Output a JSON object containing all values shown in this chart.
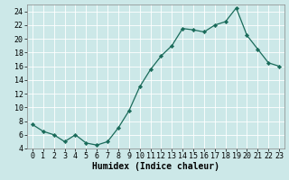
{
  "x": [
    0,
    1,
    2,
    3,
    4,
    5,
    6,
    7,
    8,
    9,
    10,
    11,
    12,
    13,
    14,
    15,
    16,
    17,
    18,
    19,
    20,
    21,
    22,
    23
  ],
  "y": [
    7.5,
    6.5,
    6.0,
    5.0,
    6.0,
    4.8,
    4.5,
    5.0,
    7.0,
    9.5,
    13.0,
    15.5,
    17.5,
    19.0,
    21.5,
    21.3,
    21.0,
    22.0,
    22.5,
    24.5,
    20.5,
    18.5,
    16.5,
    16.0
  ],
  "xlabel": "Humidex (Indice chaleur)",
  "ylim": [
    4,
    25
  ],
  "xlim": [
    -0.5,
    23.5
  ],
  "yticks": [
    4,
    6,
    8,
    10,
    12,
    14,
    16,
    18,
    20,
    22,
    24
  ],
  "xticks": [
    0,
    1,
    2,
    3,
    4,
    5,
    6,
    7,
    8,
    9,
    10,
    11,
    12,
    13,
    14,
    15,
    16,
    17,
    18,
    19,
    20,
    21,
    22,
    23
  ],
  "line_color": "#1a6b5a",
  "marker_color": "#1a6b5a",
  "bg_color": "#cce8e8",
  "grid_color": "#ffffff",
  "axis_color": "#888888",
  "xlabel_fontsize": 7,
  "tick_fontsize": 6
}
